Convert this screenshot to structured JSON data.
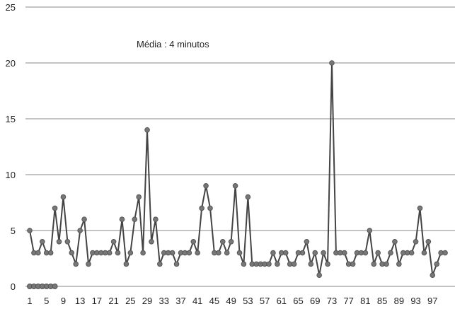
{
  "chart_data": {
    "type": "line",
    "title": "",
    "xlabel": "",
    "ylabel": "",
    "annotation": "Média : 4 minutos",
    "ylim": [
      0,
      25
    ],
    "y_ticks": [
      0,
      5,
      10,
      15,
      20,
      25
    ],
    "x_tick_labels": [
      "1",
      "5",
      "9",
      "13",
      "17",
      "21",
      "25",
      "29",
      "33",
      "37",
      "41",
      "45",
      "49",
      "53",
      "57",
      "61",
      "65",
      "69",
      "73",
      "77",
      "81",
      "85",
      "89",
      "93",
      "97"
    ],
    "grid": true,
    "legend": "none",
    "x": [
      1,
      2,
      3,
      4,
      5,
      6,
      7,
      8,
      9,
      10,
      11,
      12,
      13,
      14,
      15,
      16,
      17,
      18,
      19,
      20,
      21,
      22,
      23,
      24,
      25,
      26,
      27,
      28,
      29,
      30,
      31,
      32,
      33,
      34,
      35,
      36,
      37,
      38,
      39,
      40,
      41,
      42,
      43,
      44,
      45,
      46,
      47,
      48,
      49,
      50,
      51,
      52,
      53,
      54,
      55,
      56,
      57,
      58,
      59,
      60,
      61,
      62,
      63,
      64,
      65,
      66,
      67,
      68,
      69,
      70,
      71,
      72,
      73,
      74,
      75,
      76,
      77,
      78,
      79,
      80,
      81,
      82,
      83,
      84,
      85,
      86,
      87,
      88,
      89,
      90,
      91,
      92,
      93,
      94,
      95,
      96,
      97,
      98,
      99,
      100
    ],
    "series": [
      {
        "values": [
          5,
          3,
          3,
          4,
          3,
          3,
          7,
          4,
          8,
          4,
          3,
          2,
          5,
          6,
          2,
          3,
          3,
          3,
          3,
          3,
          4,
          3,
          6,
          2,
          3,
          6,
          8,
          3,
          14,
          4,
          6,
          2,
          3,
          3,
          3,
          2,
          3,
          3,
          3,
          4,
          3,
          7,
          9,
          7,
          3,
          3,
          4,
          3,
          4,
          9,
          3,
          2,
          8,
          2,
          2,
          2,
          2,
          2,
          3,
          2,
          3,
          3,
          2,
          2,
          3,
          3,
          4,
          2,
          3,
          1,
          3,
          2,
          20,
          3,
          3,
          3,
          2,
          2,
          3,
          3,
          3,
          5,
          2,
          3,
          2,
          2,
          3,
          4,
          2,
          3,
          3,
          3,
          4,
          7,
          3,
          4,
          1,
          2,
          3,
          3
        ]
      }
    ],
    "colors": {
      "line": "#444444",
      "marker": "#777777",
      "grid": "#8a8a8a"
    }
  }
}
